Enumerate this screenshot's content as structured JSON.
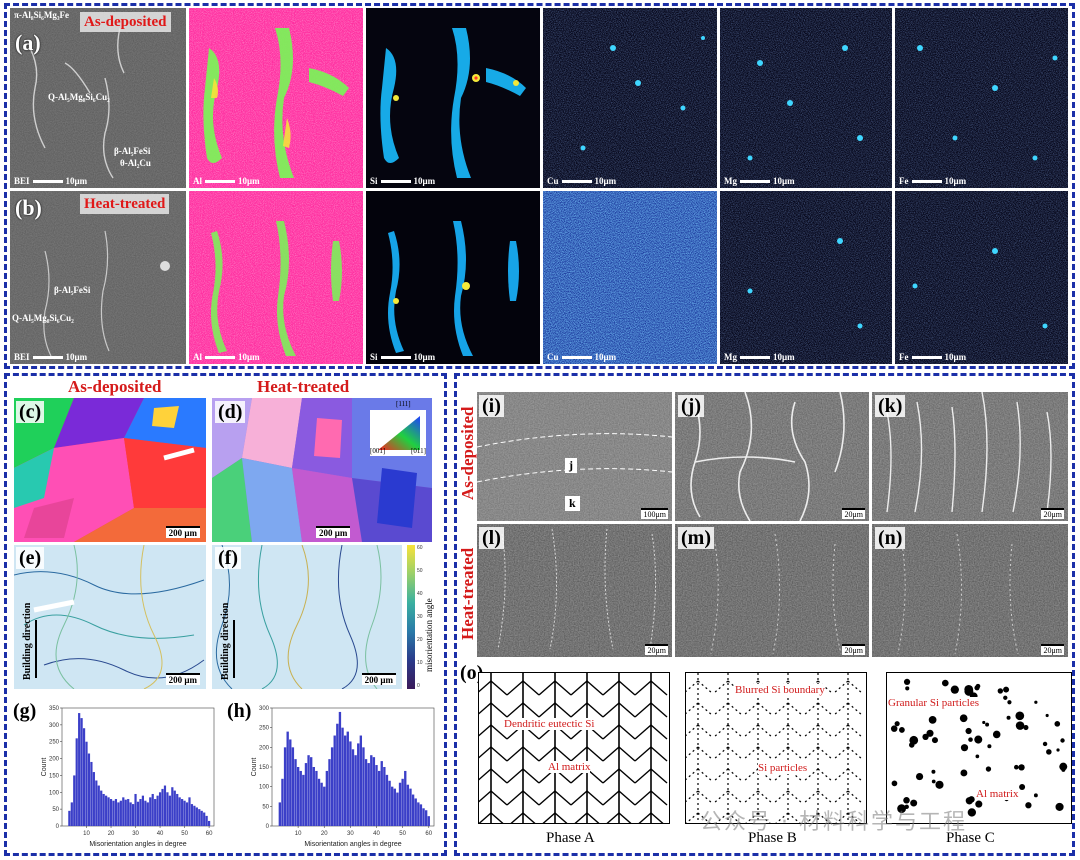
{
  "top_section": {
    "row_a": {
      "label": "(a)",
      "condition": "As-deposited",
      "phase_labels": {
        "pi": "π-Al₈Si₆Mg₃Fe",
        "q": "Q-Al₅Mg₈Si₆Cu₂",
        "beta": "β-Al₅FeSi",
        "theta": "θ-Al₂Cu"
      },
      "maps": [
        {
          "element": "BEI",
          "scale": "10μm"
        },
        {
          "element": "Al",
          "scale": "10μm"
        },
        {
          "element": "Si",
          "scale": "10μm"
        },
        {
          "element": "Cu",
          "scale": "10μm"
        },
        {
          "element": "Mg",
          "scale": "10μm"
        },
        {
          "element": "Fe",
          "scale": "10μm"
        }
      ]
    },
    "row_b": {
      "label": "(b)",
      "condition": "Heat-treated",
      "phase_labels": {
        "beta": "β-Al₅FeSi",
        "q": "Q-Al₅Mg₈Si₆Cu₂"
      },
      "maps": [
        {
          "element": "BEI",
          "scale": "10μm"
        },
        {
          "element": "Al",
          "scale": "10μm"
        },
        {
          "element": "Si",
          "scale": "10μm"
        },
        {
          "element": "Cu",
          "scale": "10μm"
        },
        {
          "element": "Mg",
          "scale": "10μm"
        },
        {
          "element": "Fe",
          "scale": "10μm"
        }
      ]
    }
  },
  "ebsd_section": {
    "title_left": "As-deposited",
    "title_right": "Heat-treated",
    "panel_c": {
      "label": "(c)",
      "scale": "200 μm"
    },
    "panel_d": {
      "label": "(d)",
      "scale": "200 μm"
    },
    "ipf_key": {
      "top": "[111]",
      "left": "[001]",
      "right": "[011]"
    },
    "panel_e": {
      "label": "(e)",
      "scale": "200 μm",
      "direction": "Building direction"
    },
    "panel_f": {
      "label": "(f)",
      "scale": "200 μm",
      "direction": "Building direction"
    },
    "colorbar_label": "misorientation angle",
    "colorbar_ticks": [
      "60",
      "50",
      "40",
      "30",
      "20",
      "10",
      "0"
    ],
    "panel_g": {
      "label": "(g)"
    },
    "panel_h": {
      "label": "(h)"
    }
  },
  "chart_data": [
    {
      "type": "bar",
      "panel": "(g)",
      "xlabel": "Misorientation angles in degree",
      "ylabel": "Count",
      "xlim": [
        0,
        62
      ],
      "ylim": [
        0,
        350
      ],
      "xticks": [
        10,
        20,
        30,
        40,
        50,
        60
      ],
      "yticks": [
        0,
        50,
        100,
        150,
        200,
        250,
        300,
        350
      ],
      "x": [
        3,
        4,
        5,
        6,
        7,
        8,
        9,
        10,
        11,
        12,
        13,
        14,
        15,
        16,
        17,
        18,
        19,
        20,
        21,
        22,
        23,
        24,
        25,
        26,
        27,
        28,
        29,
        30,
        31,
        32,
        33,
        34,
        35,
        36,
        37,
        38,
        39,
        40,
        41,
        42,
        43,
        44,
        45,
        46,
        47,
        48,
        49,
        50,
        51,
        52,
        53,
        54,
        55,
        56,
        57,
        58,
        59,
        60
      ],
      "values": [
        45,
        70,
        150,
        260,
        335,
        320,
        290,
        250,
        215,
        190,
        160,
        135,
        120,
        105,
        95,
        90,
        85,
        80,
        75,
        80,
        70,
        75,
        85,
        78,
        80,
        70,
        65,
        95,
        72,
        80,
        90,
        75,
        70,
        85,
        95,
        80,
        90,
        100,
        110,
        120,
        100,
        90,
        115,
        105,
        95,
        85,
        80,
        75,
        70,
        85,
        65,
        60,
        55,
        50,
        45,
        40,
        30,
        15
      ]
    },
    {
      "type": "bar",
      "panel": "(h)",
      "xlabel": "Misorientation angles in degree",
      "ylabel": "Count",
      "xlim": [
        0,
        62
      ],
      "ylim": [
        0,
        300
      ],
      "xticks": [
        10,
        20,
        30,
        40,
        50,
        60
      ],
      "yticks": [
        0,
        50,
        100,
        150,
        200,
        250,
        300
      ],
      "x": [
        3,
        4,
        5,
        6,
        7,
        8,
        9,
        10,
        11,
        12,
        13,
        14,
        15,
        16,
        17,
        18,
        19,
        20,
        21,
        22,
        23,
        24,
        25,
        26,
        27,
        28,
        29,
        30,
        31,
        32,
        33,
        34,
        35,
        36,
        37,
        38,
        39,
        40,
        41,
        42,
        43,
        44,
        45,
        46,
        47,
        48,
        49,
        50,
        51,
        52,
        53,
        54,
        55,
        56,
        57,
        58,
        59,
        60
      ],
      "values": [
        60,
        120,
        200,
        240,
        220,
        200,
        170,
        150,
        140,
        130,
        160,
        180,
        175,
        150,
        140,
        120,
        110,
        100,
        140,
        170,
        200,
        230,
        260,
        290,
        250,
        230,
        240,
        215,
        195,
        180,
        210,
        230,
        200,
        170,
        160,
        180,
        175,
        155,
        140,
        165,
        150,
        130,
        115,
        100,
        95,
        85,
        110,
        120,
        140,
        105,
        95,
        80,
        70,
        60,
        55,
        45,
        40,
        25
      ]
    }
  ],
  "sem_section": {
    "row_label_top": "As-deposited",
    "row_label_bottom": "Heat-treated",
    "panels": [
      {
        "label": "(i)",
        "scale": "100μm",
        "markers": [
          "j",
          "k"
        ]
      },
      {
        "label": "(j)",
        "scale": "20μm"
      },
      {
        "label": "(k)",
        "scale": "20μm"
      },
      {
        "label": "(l)",
        "scale": "20μm"
      },
      {
        "label": "(m)",
        "scale": "20μm"
      },
      {
        "label": "(n)",
        "scale": "20μm"
      }
    ],
    "schematic": {
      "label": "(o)",
      "phase_a": {
        "caption": "Phase A",
        "ann1": "Dendritic eutectic Si",
        "ann2": "Al matrix"
      },
      "phase_b": {
        "caption": "Phase B",
        "ann1": "Blurred Si boundary",
        "ann2": "Si particles"
      },
      "phase_c": {
        "caption": "Phase C",
        "ann1": "Granular Si particles",
        "ann2": "Al matrix"
      }
    },
    "watermark": "公众号 · 材料科学与工程"
  },
  "colors": {
    "frame": "#1b2fa8",
    "title_red": "#d51a1a",
    "hist_bar": "#3b3fc8"
  }
}
